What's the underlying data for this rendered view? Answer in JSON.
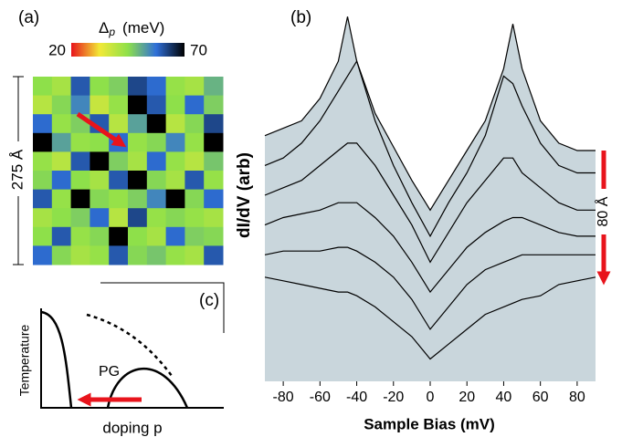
{
  "chart_data": [
    {
      "type": "heatmap",
      "panel": "(a)",
      "colorbar_symbol": "Δ",
      "colorbar_subscript": "p",
      "colorbar_unit": "(meV)",
      "clim": [
        20,
        70
      ],
      "cticks": [
        20,
        70
      ],
      "colormap": [
        "#e8141c",
        "#f2e936",
        "#8ee04a",
        "#2f6fd8",
        "#000000"
      ],
      "scale_label": "275 Å",
      "values": [
        [
          45,
          42,
          60,
          45,
          47,
          62,
          58,
          44,
          42,
          50
        ],
        [
          40,
          46,
          55,
          38,
          44,
          70,
          60,
          45,
          58,
          47
        ],
        [
          58,
          44,
          47,
          60,
          40,
          52,
          70,
          40,
          46,
          62
        ],
        [
          70,
          52,
          44,
          45,
          58,
          44,
          46,
          55,
          44,
          70
        ],
        [
          44,
          40,
          60,
          70,
          47,
          42,
          58,
          44,
          40,
          48
        ],
        [
          46,
          58,
          45,
          42,
          60,
          70,
          46,
          42,
          60,
          44
        ],
        [
          60,
          44,
          70,
          46,
          44,
          47,
          55,
          70,
          46,
          58
        ],
        [
          42,
          45,
          47,
          58,
          40,
          62,
          44,
          46,
          44,
          42
        ],
        [
          45,
          60,
          44,
          46,
          70,
          45,
          42,
          58,
          47,
          46
        ],
        [
          58,
          46,
          42,
          44,
          60,
          46,
          48,
          44,
          42,
          60
        ]
      ]
    },
    {
      "type": "line",
      "panel": "(b)",
      "xlabel": "Sample Bias (mV)",
      "ylabel": "dI/dV (arb)",
      "annotation": "80 Å",
      "fill": "#c9d6dc",
      "color": "#000000",
      "xlim": [
        -90,
        90
      ],
      "xticks": [
        -80,
        -60,
        -40,
        -20,
        0,
        20,
        40,
        60,
        80
      ],
      "ylim": [
        0,
        10
      ],
      "x": [
        -90,
        -80,
        -70,
        -60,
        -50,
        -45,
        -40,
        -30,
        -20,
        -10,
        0,
        10,
        20,
        30,
        40,
        45,
        50,
        60,
        70,
        80,
        90
      ],
      "series": [
        {
          "values": [
            6.6,
            6.8,
            7.0,
            7.6,
            8.6,
            9.8,
            8.6,
            7.2,
            6.3,
            5.4,
            4.6,
            5.4,
            6.2,
            7.0,
            8.4,
            9.6,
            8.4,
            7.0,
            6.4,
            6.2,
            6.2
          ]
        },
        {
          "values": [
            5.8,
            6.0,
            6.4,
            7.0,
            7.8,
            8.2,
            8.6,
            7.0,
            5.8,
            4.8,
            3.9,
            4.8,
            5.6,
            6.6,
            8.2,
            8.0,
            7.4,
            6.4,
            5.8,
            5.6,
            5.6
          ]
        },
        {
          "values": [
            5.0,
            5.2,
            5.4,
            5.8,
            6.2,
            6.4,
            6.4,
            5.8,
            5.0,
            4.2,
            3.2,
            4.0,
            4.8,
            5.4,
            6.0,
            6.0,
            5.6,
            5.2,
            4.8,
            4.6,
            4.6
          ]
        },
        {
          "values": [
            4.2,
            4.4,
            4.5,
            4.6,
            4.8,
            4.8,
            4.8,
            4.4,
            3.9,
            3.2,
            2.4,
            3.0,
            3.6,
            4.0,
            4.3,
            4.4,
            4.4,
            4.2,
            4.0,
            3.9,
            3.9
          ]
        },
        {
          "values": [
            3.4,
            3.5,
            3.5,
            3.5,
            3.6,
            3.6,
            3.5,
            3.2,
            2.8,
            2.2,
            1.4,
            2.0,
            2.6,
            3.0,
            3.2,
            3.3,
            3.4,
            3.4,
            3.4,
            3.4,
            3.4
          ]
        },
        {
          "values": [
            2.8,
            2.7,
            2.6,
            2.5,
            2.4,
            2.4,
            2.3,
            2.0,
            1.6,
            1.2,
            0.6,
            1.0,
            1.4,
            1.8,
            2.0,
            2.1,
            2.2,
            2.3,
            2.6,
            2.7,
            2.8
          ]
        }
      ]
    },
    {
      "type": "diagram",
      "panel": "(c)",
      "xlabel": "doping p",
      "ylabel": "Temperature",
      "region_label": "PG"
    }
  ]
}
